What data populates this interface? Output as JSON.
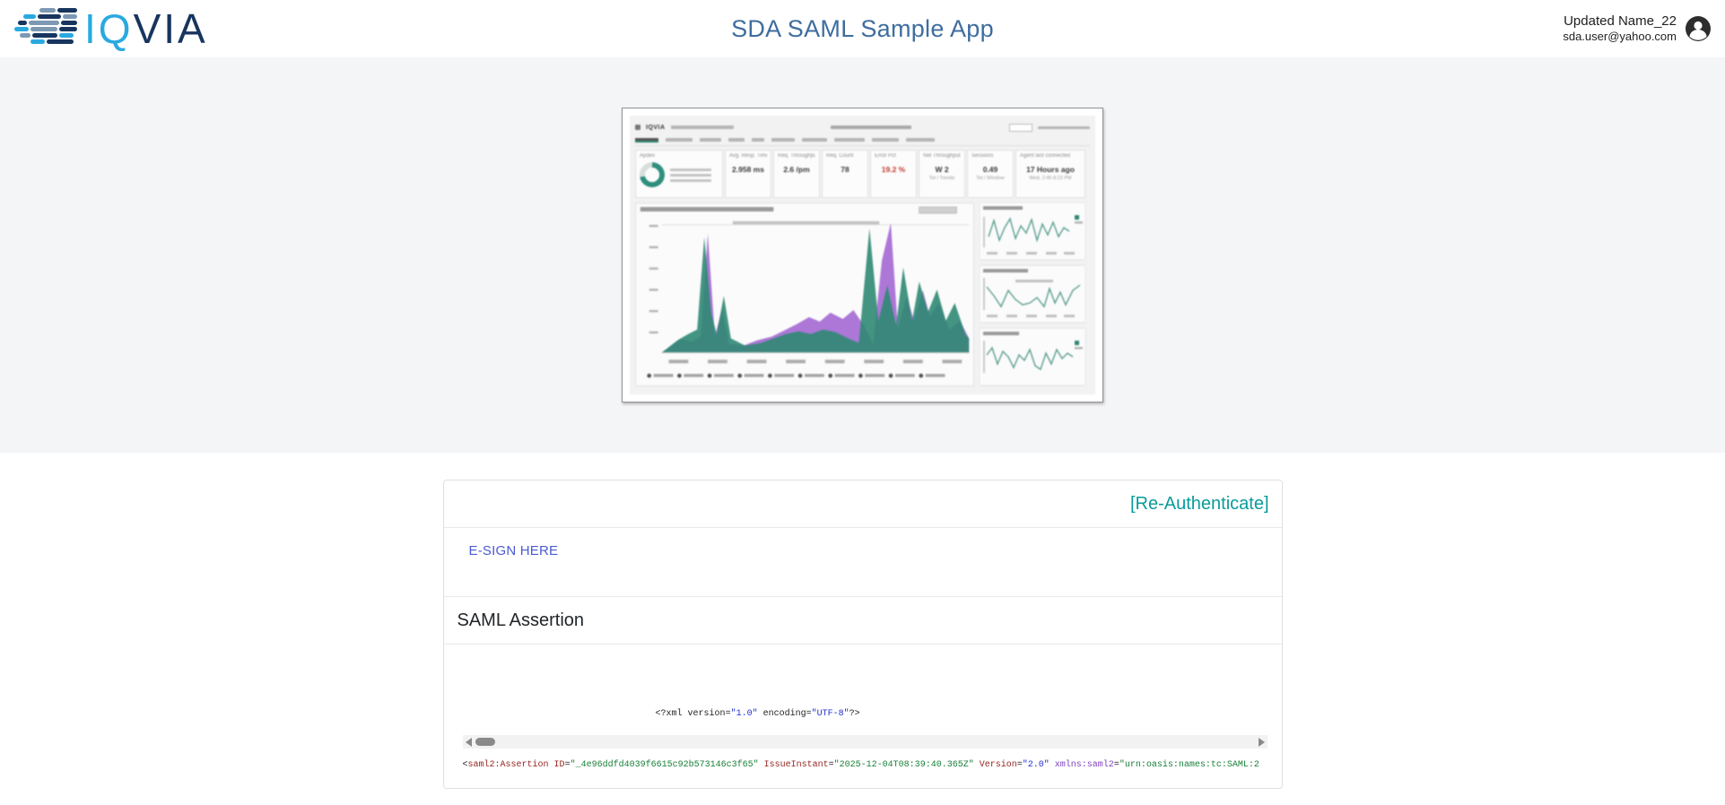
{
  "header": {
    "logo_text": "IQVIA",
    "logo_colors": {
      "light_blue": "#2aa9e0",
      "steel_blue": "#7d98b3",
      "navy": "#17355e"
    },
    "title": "SDA SAML Sample App",
    "user": {
      "name": "Updated Name_22",
      "email": "sda.user@yahoo.com"
    }
  },
  "hero": {
    "thumbnail": {
      "brand": "IQVIA",
      "kpis": [
        {
          "type": "donut",
          "label": "Apdex"
        },
        {
          "label": "Avg. Resp. Time",
          "value": "2.958 ms"
        },
        {
          "label": "Req. Throughput",
          "value": "2.6 /pm"
        },
        {
          "label": "Req. Count",
          "value": "78"
        },
        {
          "label": "Error Pct",
          "value": "19.2 %",
          "tone": "red"
        },
        {
          "label": "Net Throughput",
          "value": "W 2",
          "sub": "Tot / Trends"
        },
        {
          "label": "Sessions",
          "value": "0.49",
          "sub": "Tot / Window"
        },
        {
          "label": "Agent last connected",
          "value": "17 Hours ago",
          "sub": "Wed, 2:45 8:23 PM",
          "wide": true
        }
      ],
      "chart_colors": {
        "teal": "#2f8873",
        "purple": "#9e5fd0"
      }
    }
  },
  "card": {
    "reauthenticate_label": "[Re-Authenticate]",
    "esign_label": "E-SIGN HERE",
    "section_title": "SAML Assertion",
    "xml": {
      "line1": [
        {
          "t": "<?",
          "c": "k"
        },
        {
          "t": "xml",
          "c": "k"
        },
        {
          "t": " ",
          "c": "k"
        },
        {
          "t": "version",
          "c": "k"
        },
        {
          "t": "=",
          "c": "k"
        },
        {
          "t": "\"1.0\"",
          "c": "b"
        },
        {
          "t": " ",
          "c": "k"
        },
        {
          "t": "encoding",
          "c": "k"
        },
        {
          "t": "=",
          "c": "k"
        },
        {
          "t": "\"UTF-8\"",
          "c": "b"
        },
        {
          "t": "?>",
          "c": "k"
        }
      ],
      "line2": [
        {
          "t": "<",
          "c": "k"
        },
        {
          "t": "saml2:Assertion",
          "c": "m"
        },
        {
          "t": " ",
          "c": "k"
        },
        {
          "t": "ID",
          "c": "m"
        },
        {
          "t": "=",
          "c": "k"
        },
        {
          "t": "\"_4e96ddfd4039f6615c92b573146c3f65\"",
          "c": "g"
        },
        {
          "t": " ",
          "c": "k"
        },
        {
          "t": "IssueInstant",
          "c": "m"
        },
        {
          "t": "=",
          "c": "k"
        },
        {
          "t": "\"2025-12-04T08:39:40.365Z\"",
          "c": "g"
        },
        {
          "t": " ",
          "c": "k"
        },
        {
          "t": "Version",
          "c": "m"
        },
        {
          "t": "=",
          "c": "k"
        },
        {
          "t": "\"2.0\"",
          "c": "b"
        },
        {
          "t": " ",
          "c": "k"
        },
        {
          "t": "xmlns:saml2",
          "c": "p"
        },
        {
          "t": "=",
          "c": "k"
        },
        {
          "t": "\"urn:oasis:names:tc:SAML:2",
          "c": "g"
        }
      ]
    }
  }
}
